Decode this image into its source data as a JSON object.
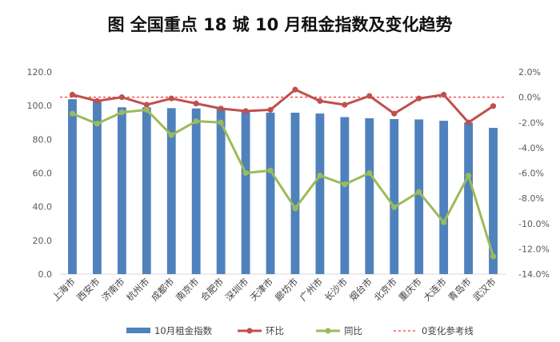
{
  "chart_data": {
    "type": "bar",
    "title": "图  全国重点 18 城 10 月租金指数及变化趋势",
    "categories": [
      "上海市",
      "西安市",
      "济南市",
      "杭州市",
      "成都市",
      "南京市",
      "合肥市",
      "深圳市",
      "天津市",
      "廊坊市",
      "广州市",
      "长沙市",
      "烟台市",
      "北京市",
      "重庆市",
      "大连市",
      "青岛市",
      "武汉市"
    ],
    "series": [
      {
        "name": "10月租金指数",
        "type": "bar",
        "axis": "left",
        "color": "#4f81bd",
        "values": [
          103.8,
          103.5,
          99.0,
          99.0,
          98.5,
          98.3,
          98.0,
          97.0,
          95.8,
          95.8,
          95.3,
          93.2,
          92.5,
          92.0,
          91.8,
          91.0,
          90.0,
          86.8
        ]
      },
      {
        "name": "环比",
        "type": "line",
        "axis": "right",
        "color": "#c0504d",
        "values": [
          0.2,
          -0.3,
          0.0,
          -0.6,
          -0.1,
          -0.5,
          -0.9,
          -1.1,
          -1.0,
          0.6,
          -0.3,
          -0.6,
          0.1,
          -1.3,
          -0.1,
          0.2,
          -2.0,
          -0.7
        ]
      },
      {
        "name": "同比",
        "type": "line",
        "axis": "right",
        "color": "#9bbb59",
        "values": [
          -1.3,
          -2.1,
          -1.2,
          -1.0,
          -3.0,
          -1.9,
          -2.0,
          -6.0,
          -5.8,
          -8.8,
          -6.2,
          -6.9,
          -6.0,
          -8.7,
          -7.5,
          -9.9,
          -6.2,
          -12.6
        ]
      },
      {
        "name": "0变化参考线",
        "type": "reference",
        "axis": "right",
        "color": "#ff0000",
        "value": 0
      }
    ],
    "y_left": {
      "ylim": [
        0,
        120
      ],
      "ticks": [
        "0.0",
        "20.0",
        "40.0",
        "60.0",
        "80.0",
        "100.0",
        "120.0"
      ]
    },
    "y_right": {
      "ylim": [
        -14,
        2
      ],
      "ticks": [
        "2.0%",
        "0.0%",
        "-2.0%",
        "-4.0%",
        "-6.0%",
        "-8.0%",
        "-10.0%",
        "-12.0%",
        "-14.0%"
      ]
    },
    "legend_position": "bottom",
    "grid": false
  }
}
